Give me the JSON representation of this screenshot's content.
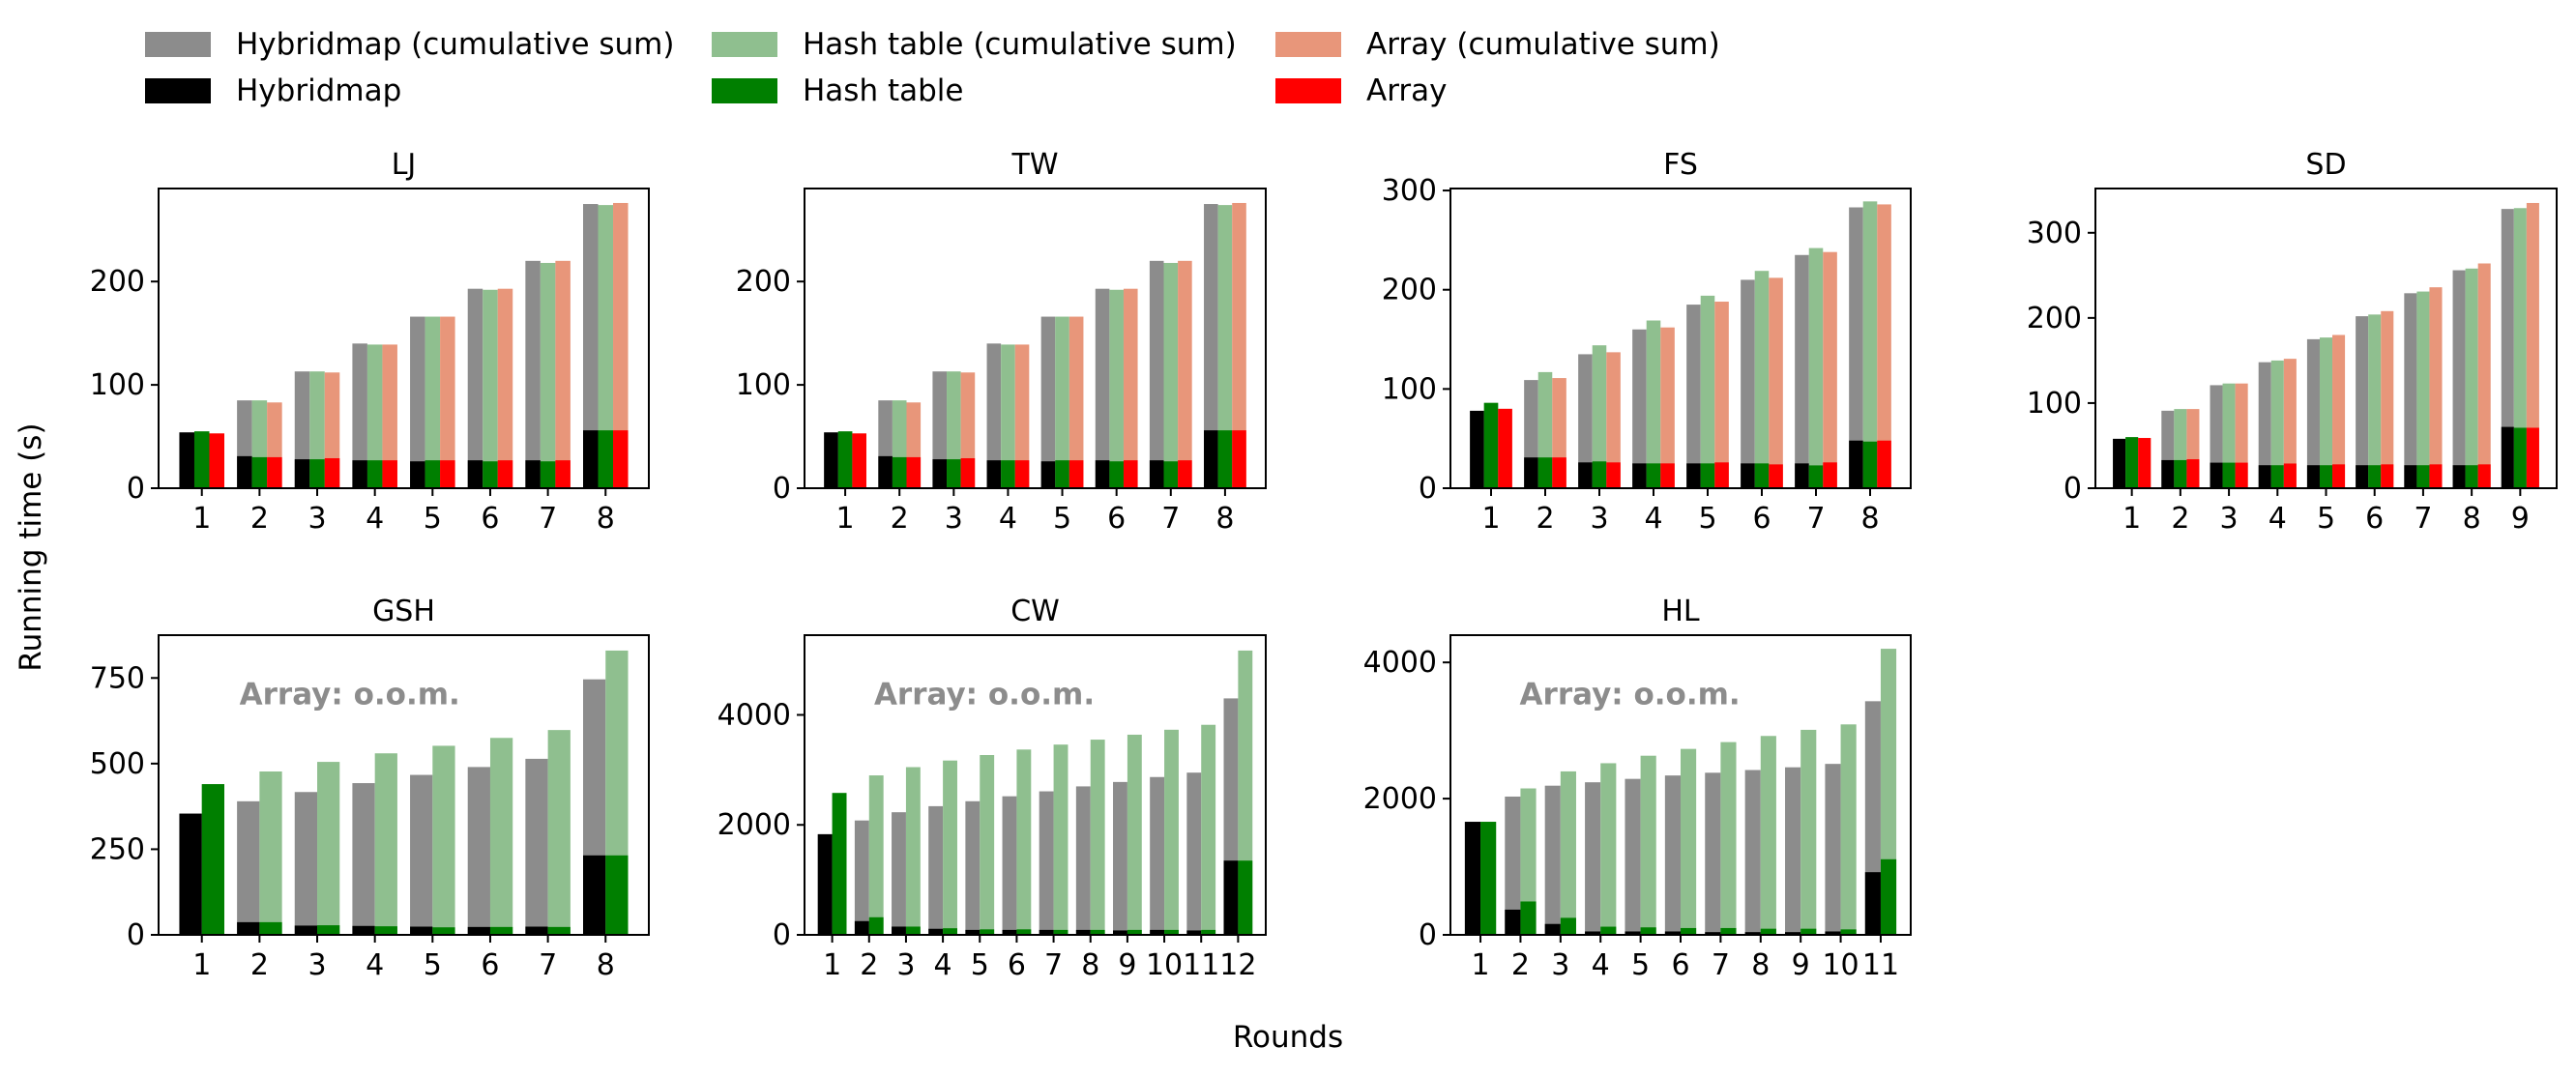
{
  "legend": {
    "items": [
      {
        "label": "Hybridmap (cumulative sum)",
        "color": "#8c8c8c"
      },
      {
        "label": "Hybridmap",
        "color": "#000000"
      },
      {
        "label": "Hash table (cumulative sum)",
        "color": "#8fbf8f"
      },
      {
        "label": "Hash table",
        "color": "#007f00"
      },
      {
        "label": "Array (cumulative sum)",
        "color": "#e8967a"
      },
      {
        "label": "Array",
        "color": "#ff0000"
      }
    ]
  },
  "ylabel": "Running time (s)",
  "xlabel": "Rounds",
  "annotation_text": "Array: o.o.m.",
  "chart_data": [
    {
      "type": "bar",
      "title": "LJ",
      "categories": [
        "1",
        "2",
        "3",
        "4",
        "5",
        "6",
        "7",
        "8"
      ],
      "ylim": [
        0,
        290
      ],
      "yticks": [
        0,
        100,
        200
      ],
      "series": [
        {
          "name": "Hybridmap (cumulative sum)",
          "values": [
            54,
            85,
            113,
            140,
            166,
            193,
            220,
            275
          ]
        },
        {
          "name": "Hybridmap",
          "values": [
            54,
            31,
            28,
            27,
            26,
            27,
            27,
            56
          ]
        },
        {
          "name": "Hash table (cumulative sum)",
          "values": [
            55,
            85,
            113,
            139,
            166,
            192,
            218,
            274
          ]
        },
        {
          "name": "Hash table",
          "values": [
            55,
            30,
            28,
            27,
            27,
            26,
            26,
            56
          ]
        },
        {
          "name": "Array (cumulative sum)",
          "values": [
            53,
            83,
            112,
            139,
            166,
            193,
            220,
            276
          ]
        },
        {
          "name": "Array",
          "values": [
            53,
            30,
            29,
            27,
            27,
            27,
            27,
            56
          ]
        }
      ]
    },
    {
      "type": "bar",
      "title": "TW",
      "categories": [
        "1",
        "2",
        "3",
        "4",
        "5",
        "6",
        "7",
        "8"
      ],
      "ylim": [
        0,
        290
      ],
      "yticks": [
        0,
        100,
        200
      ],
      "series": [
        {
          "name": "Hybridmap (cumulative sum)",
          "values": [
            54,
            85,
            113,
            140,
            166,
            193,
            220,
            275
          ]
        },
        {
          "name": "Hybridmap",
          "values": [
            54,
            31,
            28,
            27,
            26,
            27,
            27,
            56
          ]
        },
        {
          "name": "Hash table (cumulative sum)",
          "values": [
            55,
            85,
            113,
            139,
            166,
            192,
            218,
            274
          ]
        },
        {
          "name": "Hash table",
          "values": [
            55,
            30,
            28,
            27,
            27,
            26,
            26,
            56
          ]
        },
        {
          "name": "Array (cumulative sum)",
          "values": [
            53,
            83,
            112,
            139,
            166,
            193,
            220,
            276
          ]
        },
        {
          "name": "Array",
          "values": [
            53,
            30,
            29,
            27,
            27,
            27,
            27,
            56
          ]
        }
      ]
    },
    {
      "type": "bar",
      "title": "FS",
      "categories": [
        "1",
        "2",
        "3",
        "4",
        "5",
        "6",
        "7",
        "8"
      ],
      "ylim": [
        0,
        302
      ],
      "yticks": [
        0,
        100,
        200,
        300
      ],
      "series": [
        {
          "name": "Hybridmap (cumulative sum)",
          "values": [
            78,
            109,
            135,
            160,
            185,
            210,
            235,
            283
          ]
        },
        {
          "name": "Hybridmap",
          "values": [
            78,
            31,
            26,
            25,
            25,
            25,
            25,
            48
          ]
        },
        {
          "name": "Hash table (cumulative sum)",
          "values": [
            86,
            117,
            144,
            169,
            194,
            219,
            242,
            289
          ]
        },
        {
          "name": "Hash table",
          "values": [
            86,
            31,
            27,
            25,
            25,
            25,
            23,
            47
          ]
        },
        {
          "name": "Array (cumulative sum)",
          "values": [
            80,
            111,
            137,
            162,
            188,
            212,
            238,
            286
          ]
        },
        {
          "name": "Array",
          "values": [
            80,
            31,
            26,
            25,
            26,
            24,
            26,
            48
          ]
        }
      ]
    },
    {
      "type": "bar",
      "title": "SD",
      "categories": [
        "1",
        "2",
        "3",
        "4",
        "5",
        "6",
        "7",
        "8",
        "9"
      ],
      "ylim": [
        0,
        352
      ],
      "yticks": [
        0,
        100,
        200,
        300
      ],
      "series": [
        {
          "name": "Hybridmap (cumulative sum)",
          "values": [
            58,
            91,
            121,
            148,
            175,
            202,
            229,
            256,
            328
          ]
        },
        {
          "name": "Hybridmap",
          "values": [
            58,
            33,
            30,
            27,
            27,
            27,
            27,
            27,
            72
          ]
        },
        {
          "name": "Hash table (cumulative sum)",
          "values": [
            60,
            93,
            123,
            150,
            177,
            204,
            231,
            258,
            329
          ]
        },
        {
          "name": "Hash table",
          "values": [
            60,
            33,
            30,
            27,
            27,
            27,
            27,
            27,
            71
          ]
        },
        {
          "name": "Array (cumulative sum)",
          "values": [
            59,
            93,
            123,
            152,
            180,
            208,
            236,
            264,
            335
          ]
        },
        {
          "name": "Array",
          "values": [
            59,
            34,
            30,
            29,
            28,
            28,
            28,
            28,
            71
          ]
        }
      ]
    },
    {
      "type": "bar",
      "title": "GSH",
      "categories": [
        "1",
        "2",
        "3",
        "4",
        "5",
        "6",
        "7",
        "8"
      ],
      "ylim": [
        0,
        875
      ],
      "yticks": [
        0,
        250,
        500,
        750
      ],
      "annotation": "Array: o.o.m.",
      "series": [
        {
          "name": "Hybridmap (cumulative sum)",
          "values": [
            354,
            390,
            417,
            443,
            467,
            490,
            514,
            746
          ]
        },
        {
          "name": "Hybridmap",
          "values": [
            354,
            37,
            27,
            26,
            24,
            23,
            24,
            232
          ]
        },
        {
          "name": "Hash table (cumulative sum)",
          "values": [
            440,
            477,
            505,
            530,
            552,
            575,
            598,
            830
          ]
        },
        {
          "name": "Hash table",
          "values": [
            440,
            37,
            28,
            25,
            22,
            23,
            23,
            232
          ]
        }
      ]
    },
    {
      "type": "bar",
      "title": "CW",
      "categories": [
        "1",
        "2",
        "3",
        "4",
        "5",
        "6",
        "7",
        "8",
        "9",
        "10",
        "11",
        "12"
      ],
      "ylim": [
        0,
        5450
      ],
      "yticks": [
        0,
        2000,
        4000
      ],
      "annotation": "Array: o.o.m.",
      "series": [
        {
          "name": "Hybridmap (cumulative sum)",
          "values": [
            1830,
            2080,
            2230,
            2340,
            2430,
            2520,
            2610,
            2700,
            2780,
            2870,
            2950,
            4300
          ]
        },
        {
          "name": "Hybridmap",
          "values": [
            1830,
            250,
            150,
            110,
            90,
            90,
            90,
            90,
            80,
            90,
            80,
            1350
          ]
        },
        {
          "name": "Hash table (cumulative sum)",
          "values": [
            2580,
            2900,
            3050,
            3170,
            3270,
            3370,
            3460,
            3550,
            3640,
            3730,
            3820,
            5170
          ]
        },
        {
          "name": "Hash table",
          "values": [
            2580,
            320,
            150,
            120,
            100,
            100,
            90,
            90,
            90,
            90,
            90,
            1350
          ]
        }
      ]
    },
    {
      "type": "bar",
      "title": "HL",
      "categories": [
        "1",
        "2",
        "3",
        "4",
        "5",
        "6",
        "7",
        "8",
        "9",
        "10",
        "11"
      ],
      "ylim": [
        0,
        4400
      ],
      "yticks": [
        0,
        2000,
        4000
      ],
      "annotation": "Array: o.o.m.",
      "series": [
        {
          "name": "Hybridmap (cumulative sum)",
          "values": [
            1660,
            2030,
            2190,
            2240,
            2290,
            2340,
            2380,
            2420,
            2460,
            2510,
            3430
          ]
        },
        {
          "name": "Hybridmap",
          "values": [
            1660,
            370,
            160,
            50,
            50,
            50,
            40,
            40,
            40,
            50,
            920
          ]
        },
        {
          "name": "Hash table (cumulative sum)",
          "values": [
            1660,
            2150,
            2400,
            2520,
            2630,
            2730,
            2830,
            2920,
            3010,
            3090,
            4200
          ]
        },
        {
          "name": "Hash table",
          "values": [
            1660,
            490,
            250,
            120,
            110,
            100,
            100,
            90,
            90,
            80,
            1110
          ]
        }
      ]
    }
  ]
}
